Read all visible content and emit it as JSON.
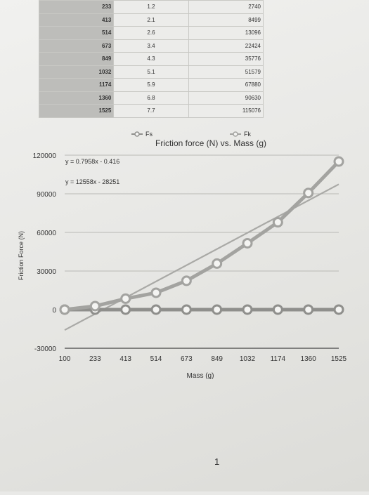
{
  "table": {
    "rows": [
      [
        "233",
        "1.2",
        "2740"
      ],
      [
        "413",
        "2.1",
        "8499"
      ],
      [
        "514",
        "2.6",
        "13096"
      ],
      [
        "673",
        "3.4",
        "22424"
      ],
      [
        "849",
        "4.3",
        "35776"
      ],
      [
        "1032",
        "5.1",
        "51579"
      ],
      [
        "1174",
        "5.9",
        "67880"
      ],
      [
        "1360",
        "6.8",
        "90630"
      ],
      [
        "1525",
        "7.7",
        "115076"
      ]
    ]
  },
  "chart_data": {
    "type": "line",
    "title": "Friction force (N) vs. Mass (g)",
    "xlabel": "Mass (g)",
    "ylabel": "Friction Force (N)",
    "categories": [
      "100",
      "233",
      "413",
      "514",
      "673",
      "849",
      "1032",
      "1174",
      "1360",
      "1525"
    ],
    "ylim": [
      -30000,
      120000
    ],
    "yticks": [
      -30000,
      0,
      30000,
      60000,
      90000,
      120000
    ],
    "series": [
      {
        "name": "Fs",
        "values": [
          0,
          1.2,
          2.1,
          2.6,
          3.4,
          4.3,
          5.1,
          5.9,
          6.8,
          7.7
        ]
      },
      {
        "name": "Fk",
        "values": [
          0,
          2740,
          8499,
          13096,
          22424,
          35776,
          51579,
          67880,
          90630,
          115076
        ]
      }
    ],
    "trendlines": [
      {
        "equation": "y = 0.7958x - 0.416"
      },
      {
        "equation": "y = 12558x - 28251"
      }
    ],
    "legend_position": "top",
    "grid": true
  },
  "page_number": "1"
}
